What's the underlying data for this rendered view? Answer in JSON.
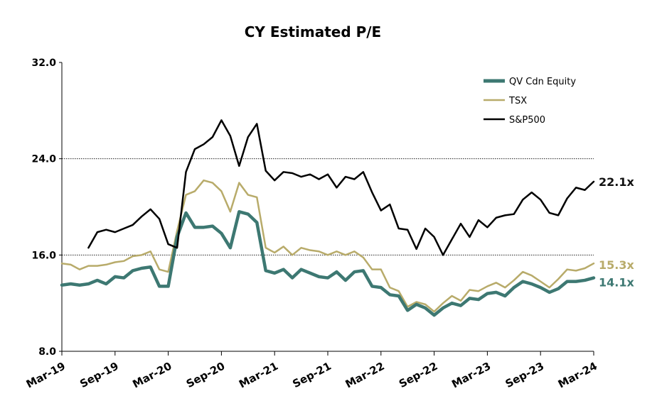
{
  "chart_data": {
    "type": "line",
    "title": "CY Estimated P/E",
    "xlabel": "",
    "ylabel": "",
    "ylim": [
      8,
      32
    ],
    "yticks": [
      "8.0",
      "16.0",
      "24.0",
      "32.0"
    ],
    "ytick_values": [
      8,
      16,
      24,
      32
    ],
    "gridlines_at": [
      16,
      24
    ],
    "xticks": [
      "Mar-19",
      "Sep-19",
      "Mar-20",
      "Sep-20",
      "Mar-21",
      "Sep-21",
      "Mar-22",
      "Sep-22",
      "Mar-23",
      "Sep-23",
      "Mar-24"
    ],
    "legend_position": "top-right",
    "x": [
      "2019-03",
      "2019-04",
      "2019-05",
      "2019-06",
      "2019-07",
      "2019-08",
      "2019-09",
      "2019-10",
      "2019-11",
      "2019-12",
      "2020-01",
      "2020-02",
      "2020-03",
      "2020-04",
      "2020-05",
      "2020-06",
      "2020-07",
      "2020-08",
      "2020-09",
      "2020-10",
      "2020-11",
      "2020-12",
      "2021-01",
      "2021-02",
      "2021-03",
      "2021-04",
      "2021-05",
      "2021-06",
      "2021-07",
      "2021-08",
      "2021-09",
      "2021-10",
      "2021-11",
      "2021-12",
      "2022-01",
      "2022-02",
      "2022-03",
      "2022-04",
      "2022-05",
      "2022-06",
      "2022-07",
      "2022-08",
      "2022-09",
      "2022-10",
      "2022-11",
      "2022-12",
      "2023-01",
      "2023-02",
      "2023-03",
      "2023-04",
      "2023-05",
      "2023-06",
      "2023-07",
      "2023-08",
      "2023-09",
      "2023-10",
      "2023-11",
      "2023-12",
      "2024-01",
      "2024-02",
      "2024-03"
    ],
    "series": [
      {
        "name": "QV Cdn  Equity",
        "color": "#3d7872",
        "values": [
          13.5,
          13.6,
          13.5,
          13.6,
          13.9,
          13.6,
          14.2,
          14.1,
          14.7,
          14.9,
          15.0,
          13.4,
          13.4,
          17.5,
          19.5,
          18.3,
          18.3,
          18.4,
          17.8,
          16.6,
          19.6,
          19.4,
          18.7,
          14.7,
          14.5,
          14.8,
          14.1,
          14.8,
          14.5,
          14.2,
          14.1,
          14.6,
          13.9,
          14.6,
          14.7,
          13.4,
          13.3,
          12.7,
          12.6,
          11.4,
          11.9,
          11.6,
          11.0,
          11.6,
          12.0,
          11.8,
          12.4,
          12.3,
          12.8,
          12.9,
          12.6,
          13.3,
          13.8,
          13.6,
          13.3,
          12.9,
          13.2,
          13.8,
          13.8,
          13.9,
          14.1
        ]
      },
      {
        "name": "TSX",
        "color": "#b8ab6a",
        "values": [
          15.3,
          15.2,
          14.8,
          15.1,
          15.1,
          15.2,
          15.4,
          15.5,
          15.9,
          16.0,
          16.3,
          14.8,
          14.6,
          18.0,
          21.0,
          21.3,
          22.2,
          22.0,
          21.3,
          19.6,
          22.0,
          21.0,
          20.8,
          16.6,
          16.2,
          16.7,
          16.0,
          16.6,
          16.4,
          16.3,
          16.0,
          16.3,
          16.0,
          16.3,
          15.8,
          14.8,
          14.8,
          13.3,
          13.0,
          11.7,
          12.1,
          11.9,
          11.3,
          12.0,
          12.6,
          12.2,
          13.1,
          13.0,
          13.4,
          13.7,
          13.3,
          13.9,
          14.6,
          14.3,
          13.8,
          13.3,
          14.0,
          14.8,
          14.7,
          14.9,
          15.3
        ]
      },
      {
        "name": "S&P500",
        "color": "#000000",
        "values": [
          null,
          null,
          null,
          16.6,
          17.9,
          18.1,
          17.9,
          18.2,
          18.5,
          19.2,
          19.8,
          19.0,
          16.9,
          16.6,
          22.9,
          24.8,
          25.2,
          25.8,
          27.2,
          25.9,
          23.4,
          25.8,
          26.9,
          23.0,
          22.2,
          22.9,
          22.8,
          22.5,
          22.7,
          22.3,
          22.7,
          21.6,
          22.5,
          22.3,
          22.9,
          21.2,
          19.7,
          20.2,
          18.2,
          18.1,
          16.5,
          18.2,
          17.5,
          16.0,
          17.3,
          18.6,
          17.5,
          18.9,
          18.3,
          19.1,
          19.3,
          19.4,
          20.6,
          21.2,
          20.6,
          19.5,
          19.3,
          20.7,
          21.6,
          21.4,
          22.1
        ]
      }
    ],
    "end_labels": [
      {
        "series": "S&P500",
        "text": "22.1x",
        "color": "#111111"
      },
      {
        "series": "TSX",
        "text": "15.3x",
        "color": "#b8ab6a"
      },
      {
        "series": "QV Cdn  Equity",
        "text": "14.1x",
        "color": "#3d7872"
      }
    ]
  }
}
